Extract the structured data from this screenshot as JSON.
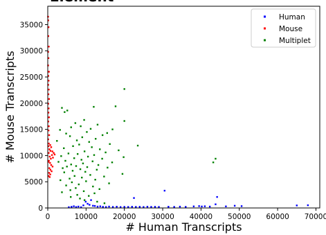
{
  "chart_data": {
    "type": "scatter",
    "title": "Element",
    "xlabel": "# Human Transcripts",
    "ylabel": "# Mouse Transcripts",
    "xlim": [
      0,
      71000
    ],
    "ylim": [
      0,
      38500
    ],
    "x_ticks": [
      0,
      10000,
      20000,
      30000,
      40000,
      50000,
      60000,
      70000
    ],
    "y_ticks": [
      0,
      5000,
      10000,
      15000,
      20000,
      25000,
      30000,
      35000
    ],
    "grid": false,
    "legend_position": "top-right",
    "series": [
      {
        "name": "Human",
        "color": "#0000ff",
        "points": [
          [
            22500,
            1900
          ],
          [
            30500,
            3300
          ],
          [
            44200,
            2100
          ],
          [
            43800,
            700
          ],
          [
            38100,
            300
          ],
          [
            39500,
            350
          ],
          [
            40200,
            280
          ],
          [
            41000,
            320
          ],
          [
            42300,
            260
          ],
          [
            46500,
            300
          ],
          [
            48800,
            420
          ],
          [
            50600,
            350
          ],
          [
            65000,
            480
          ],
          [
            67900,
            520
          ],
          [
            5500,
            150
          ],
          [
            6200,
            220
          ],
          [
            6800,
            320
          ],
          [
            7400,
            180
          ],
          [
            8000,
            260
          ],
          [
            8700,
            140
          ],
          [
            9300,
            500
          ],
          [
            9900,
            1200
          ],
          [
            10400,
            800
          ],
          [
            10900,
            600
          ],
          [
            11300,
            1500
          ],
          [
            11800,
            420
          ],
          [
            12300,
            380
          ],
          [
            13000,
            260
          ],
          [
            13700,
            310
          ],
          [
            14400,
            220
          ],
          [
            15200,
            180
          ],
          [
            16000,
            260
          ],
          [
            17000,
            200
          ],
          [
            18000,
            240
          ],
          [
            19000,
            170
          ],
          [
            20000,
            210
          ],
          [
            21000,
            190
          ],
          [
            22000,
            230
          ],
          [
            23000,
            200
          ],
          [
            24000,
            220
          ],
          [
            25000,
            180
          ],
          [
            26000,
            240
          ],
          [
            27000,
            200
          ],
          [
            28000,
            220
          ],
          [
            29000,
            190
          ],
          [
            31500,
            230
          ],
          [
            33000,
            200
          ],
          [
            34500,
            250
          ],
          [
            36000,
            210
          ]
        ]
      },
      {
        "name": "Mouse",
        "color": "#ff0000",
        "points": [
          [
            80,
            36500
          ],
          [
            120,
            35800
          ],
          [
            200,
            34500
          ],
          [
            150,
            32800
          ],
          [
            260,
            30800
          ],
          [
            100,
            29800
          ],
          [
            180,
            28600
          ],
          [
            90,
            27200
          ],
          [
            300,
            26000
          ],
          [
            140,
            25200
          ],
          [
            220,
            24300
          ],
          [
            110,
            23500
          ],
          [
            260,
            22600
          ],
          [
            170,
            21700
          ],
          [
            330,
            20800
          ],
          [
            130,
            19900
          ],
          [
            240,
            19000
          ],
          [
            180,
            18200
          ],
          [
            320,
            17300
          ],
          [
            150,
            16500
          ],
          [
            270,
            15600
          ],
          [
            200,
            14800
          ],
          [
            360,
            13900
          ],
          [
            120,
            13100
          ],
          [
            280,
            12300
          ],
          [
            650,
            12000
          ],
          [
            900,
            11600
          ],
          [
            1200,
            10800
          ],
          [
            1550,
            10500
          ],
          [
            1800,
            10200
          ],
          [
            420,
            11200
          ],
          [
            700,
            10900
          ],
          [
            1100,
            10100
          ],
          [
            500,
            9800
          ],
          [
            800,
            9400
          ],
          [
            1350,
            9600
          ],
          [
            300,
            9000
          ],
          [
            600,
            8600
          ],
          [
            900,
            8200
          ],
          [
            1250,
            7900
          ],
          [
            400,
            7600
          ],
          [
            700,
            7300
          ],
          [
            1000,
            7000
          ],
          [
            350,
            6700
          ],
          [
            650,
            6400
          ],
          [
            200,
            6100
          ],
          [
            500,
            5900
          ],
          [
            150,
            8800
          ],
          [
            250,
            10500
          ],
          [
            180,
            11800
          ]
        ]
      },
      {
        "name": "Multiplet",
        "color": "#008000",
        "points": [
          [
            20000,
            22700
          ],
          [
            12000,
            19300
          ],
          [
            17700,
            19400
          ],
          [
            3700,
            19100
          ],
          [
            5100,
            18600
          ],
          [
            4400,
            18300
          ],
          [
            20000,
            16600
          ],
          [
            9500,
            16800
          ],
          [
            16900,
            15000
          ],
          [
            7200,
            16200
          ],
          [
            13000,
            15900
          ],
          [
            8600,
            15600
          ],
          [
            6100,
            15400
          ],
          [
            11200,
            15100
          ],
          [
            3200,
            14900
          ],
          [
            10200,
            14500
          ],
          [
            15500,
            14300
          ],
          [
            4800,
            14200
          ],
          [
            14300,
            13900
          ],
          [
            5800,
            13700
          ],
          [
            9000,
            13500
          ],
          [
            12500,
            13200
          ],
          [
            7600,
            12900
          ],
          [
            2400,
            12800
          ],
          [
            10800,
            12600
          ],
          [
            16200,
            12200
          ],
          [
            8200,
            12100
          ],
          [
            23500,
            11900
          ],
          [
            6600,
            11800
          ],
          [
            11500,
            11600
          ],
          [
            4200,
            11400
          ],
          [
            13600,
            11200
          ],
          [
            18500,
            11000
          ],
          [
            9600,
            10800
          ],
          [
            15100,
            10600
          ],
          [
            5400,
            10400
          ],
          [
            7800,
            10300
          ],
          [
            12100,
            10100
          ],
          [
            3500,
            9900
          ],
          [
            10500,
            9800
          ],
          [
            19800,
            9700
          ],
          [
            6900,
            9500
          ],
          [
            14200,
            9400
          ],
          [
            8800,
            9200
          ],
          [
            4600,
            9000
          ],
          [
            11700,
            8900
          ],
          [
            2800,
            8800
          ],
          [
            16800,
            8700
          ],
          [
            43200,
            8700
          ],
          [
            9200,
            8500
          ],
          [
            6100,
            8300
          ],
          [
            13200,
            8200
          ],
          [
            7400,
            8000
          ],
          [
            5000,
            7900
          ],
          [
            10300,
            7800
          ],
          [
            15600,
            7700
          ],
          [
            3900,
            7600
          ],
          [
            8500,
            7400
          ],
          [
            12800,
            7300
          ],
          [
            6500,
            7100
          ],
          [
            9800,
            6900
          ],
          [
            4300,
            6800
          ],
          [
            19500,
            6500
          ],
          [
            43800,
            9400
          ],
          [
            11100,
            6300
          ],
          [
            7000,
            6100
          ],
          [
            14700,
            6000
          ],
          [
            8900,
            5800
          ],
          [
            5700,
            5600
          ],
          [
            12400,
            5400
          ],
          [
            3300,
            5300
          ],
          [
            10000,
            5100
          ],
          [
            6300,
            4900
          ],
          [
            16000,
            4700
          ],
          [
            8100,
            4500
          ],
          [
            4800,
            4300
          ],
          [
            11800,
            4100
          ],
          [
            7300,
            3800
          ],
          [
            13500,
            3600
          ],
          [
            5900,
            3400
          ],
          [
            9400,
            3200
          ],
          [
            3700,
            3000
          ],
          [
            12200,
            2800
          ],
          [
            7700,
            2500
          ],
          [
            10700,
            2300
          ],
          [
            6000,
            2100
          ],
          [
            8400,
            1800
          ],
          [
            9600,
            1500
          ],
          [
            12900,
            1200
          ],
          [
            14800,
            900
          ]
        ]
      }
    ]
  }
}
